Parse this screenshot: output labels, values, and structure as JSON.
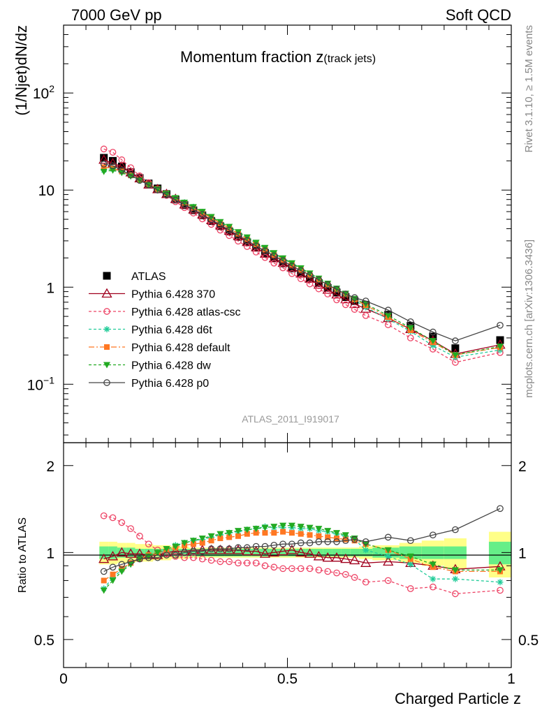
{
  "header": {
    "left": "7000 GeV pp",
    "right": "Soft QCD"
  },
  "side": {
    "rivet": "Rivet 3.1.10, ≥ 1.5M events",
    "mcplots": "mcplots.cern.ch [arXiv:1306.3436]"
  },
  "watermark": "ATLAS_2011_I919017",
  "title": {
    "main": "Momentum fraction z",
    "sub": "(track jets)"
  },
  "chart_data": [
    {
      "type": "line",
      "panel": "main",
      "ylabel": "(1/Njet)dN/dz",
      "yscale": "log",
      "ylim": [
        0.025,
        500
      ],
      "xlim": [
        0,
        1
      ],
      "legend_placement": "lower-left",
      "y_ticks": [
        {
          "value": 0.1,
          "base": "10",
          "exp": "−1"
        },
        {
          "value": 1,
          "base": "1",
          "exp": ""
        },
        {
          "value": 10,
          "base": "10",
          "exp": ""
        },
        {
          "value": 100,
          "base": "10",
          "exp": "2"
        }
      ],
      "x": [
        0.09,
        0.11,
        0.13,
        0.15,
        0.17,
        0.19,
        0.21,
        0.23,
        0.25,
        0.27,
        0.29,
        0.31,
        0.33,
        0.35,
        0.37,
        0.39,
        0.41,
        0.43,
        0.45,
        0.47,
        0.49,
        0.51,
        0.53,
        0.55,
        0.57,
        0.59,
        0.61,
        0.63,
        0.65,
        0.675,
        0.725,
        0.775,
        0.825,
        0.875,
        0.975
      ],
      "series": [
        {
          "name": "ATLAS",
          "color": "#000000",
          "marker": "square-filled",
          "dash": "none",
          "values": [
            21.5,
            20.0,
            17.5,
            15.3,
            13.3,
            11.7,
            10.4,
            9.1,
            8.0,
            7.0,
            6.2,
            5.5,
            4.8,
            4.25,
            3.75,
            3.3,
            2.9,
            2.55,
            2.25,
            1.98,
            1.76,
            1.56,
            1.38,
            1.23,
            1.1,
            0.98,
            0.88,
            0.79,
            0.72,
            0.66,
            0.52,
            0.4,
            0.31,
            0.235,
            0.285
          ]
        },
        {
          "name": "Pythia 6.428 370",
          "color": "#a0001e",
          "marker": "triangle-open",
          "dash": "none",
          "values": [
            20.5,
            18.9,
            17.5,
            15.2,
            13.2,
            11.4,
            10.2,
            9.1,
            8.1,
            7.1,
            6.3,
            5.6,
            4.9,
            4.32,
            3.81,
            3.36,
            2.92,
            2.57,
            2.21,
            1.98,
            1.78,
            1.59,
            1.38,
            1.22,
            1.06,
            0.94,
            0.84,
            0.75,
            0.67,
            0.6,
            0.48,
            0.37,
            0.28,
            0.205,
            0.255
          ]
        },
        {
          "name": "Pythia 6.428 atlas-csc",
          "color": "#ee4466",
          "marker": "circle-open",
          "dash": "4,3",
          "values": [
            26.5,
            24.5,
            20.5,
            17.0,
            14.0,
            11.9,
            10.2,
            8.8,
            7.6,
            6.6,
            5.8,
            5.05,
            4.43,
            3.87,
            3.4,
            2.98,
            2.62,
            2.3,
            2.02,
            1.77,
            1.58,
            1.38,
            1.22,
            1.08,
            0.96,
            0.85,
            0.74,
            0.66,
            0.59,
            0.51,
            0.41,
            0.3,
            0.23,
            0.168,
            0.212
          ]
        },
        {
          "name": "Pythia 6.428 d6t",
          "color": "#22cc99",
          "marker": "star",
          "dash": "4,3",
          "values": [
            16.0,
            16.4,
            15.3,
            14.0,
            12.6,
            11.4,
            10.2,
            9.2,
            8.3,
            7.45,
            6.7,
            5.95,
            5.25,
            4.65,
            4.15,
            3.65,
            3.22,
            2.84,
            2.52,
            2.22,
            1.97,
            1.74,
            1.55,
            1.37,
            1.21,
            1.07,
            0.96,
            0.85,
            0.74,
            0.62,
            0.47,
            0.35,
            0.25,
            0.19,
            0.225
          ]
        },
        {
          "name": "Pythia 6.428 default",
          "color": "#ff7722",
          "marker": "square-filled-small",
          "dash": "8,3,2,3",
          "values": [
            17.2,
            16.8,
            15.6,
            14.2,
            12.8,
            11.5,
            10.3,
            9.25,
            8.3,
            7.4,
            6.6,
            5.85,
            5.15,
            4.55,
            4.05,
            3.55,
            3.13,
            2.76,
            2.44,
            2.15,
            1.92,
            1.7,
            1.51,
            1.33,
            1.19,
            1.05,
            0.94,
            0.84,
            0.75,
            0.65,
            0.49,
            0.36,
            0.27,
            0.2,
            0.24
          ]
        },
        {
          "name": "Pythia 6.428 dw",
          "color": "#22aa22",
          "marker": "triangle-down-filled",
          "dash": "4,3",
          "values": [
            15.5,
            16.0,
            15.1,
            13.9,
            12.6,
            11.3,
            10.2,
            9.2,
            8.3,
            7.45,
            6.7,
            6.0,
            5.3,
            4.7,
            4.2,
            3.7,
            3.27,
            2.88,
            2.55,
            2.25,
            1.99,
            1.77,
            1.57,
            1.39,
            1.23,
            1.09,
            0.97,
            0.86,
            0.76,
            0.67,
            0.51,
            0.38,
            0.28,
            0.2,
            0.245
          ]
        },
        {
          "name": "Pythia 6.428 p0",
          "color": "#444444",
          "marker": "circle-open",
          "dash": "none",
          "values": [
            18.5,
            17.8,
            16.0,
            14.3,
            12.6,
            11.3,
            10.0,
            8.9,
            7.9,
            7.1,
            6.3,
            5.6,
            4.95,
            4.38,
            3.87,
            3.42,
            3.02,
            2.66,
            2.36,
            2.1,
            1.87,
            1.65,
            1.48,
            1.33,
            1.19,
            1.06,
            0.95,
            0.85,
            0.78,
            0.72,
            0.58,
            0.44,
            0.345,
            0.28,
            0.405
          ]
        }
      ]
    },
    {
      "type": "line",
      "panel": "ratio",
      "ylabel": "Ratio to ATLAS",
      "xlabel": "Charged Particle z",
      "yscale": "log",
      "ylim": [
        0.4,
        2.4
      ],
      "xlim": [
        0,
        1
      ],
      "x_ticks": [
        {
          "value": 0,
          "label": "0"
        },
        {
          "value": 0.5,
          "label": "0.5"
        },
        {
          "value": 1,
          "label": "1"
        }
      ],
      "y_ticks": [
        {
          "value": 0.5,
          "label": "0.5"
        },
        {
          "value": 1,
          "label": "1"
        },
        {
          "value": 2,
          "label": "2"
        }
      ],
      "bands": {
        "x_edges": [
          0.08,
          0.1,
          0.12,
          0.14,
          0.16,
          0.18,
          0.2,
          0.22,
          0.24,
          0.26,
          0.28,
          0.3,
          0.32,
          0.34,
          0.36,
          0.38,
          0.4,
          0.42,
          0.44,
          0.46,
          0.48,
          0.5,
          0.52,
          0.54,
          0.56,
          0.58,
          0.6,
          0.62,
          0.64,
          0.66,
          0.69,
          0.75,
          0.8,
          0.85,
          0.9,
          0.95,
          1.0
        ],
        "stat_color": "#66ee88",
        "syst_color": "#ffff88",
        "stat_half_width": [
          0.05,
          0.05,
          0.04,
          0.04,
          0.03,
          0.03,
          0.03,
          0.03,
          0.03,
          0.03,
          0.03,
          0.03,
          0.03,
          0.03,
          0.03,
          0.03,
          0.03,
          0.03,
          0.03,
          0.03,
          0.03,
          0.03,
          0.03,
          0.03,
          0.03,
          0.03,
          0.03,
          0.03,
          0.03,
          0.03,
          0.04,
          0.05,
          0.05,
          0.05,
          0.0,
          0.09
        ],
        "syst_half_width": [
          0.09,
          0.09,
          0.08,
          0.08,
          0.07,
          0.07,
          0.06,
          0.06,
          0.05,
          0.05,
          0.04,
          0.04,
          0.04,
          0.04,
          0.04,
          0.04,
          0.04,
          0.04,
          0.04,
          0.04,
          0.04,
          0.04,
          0.04,
          0.04,
          0.04,
          0.04,
          0.04,
          0.04,
          0.04,
          0.05,
          0.06,
          0.08,
          0.1,
          0.12,
          0.0,
          0.18
        ]
      },
      "x": [
        0.09,
        0.11,
        0.13,
        0.15,
        0.17,
        0.19,
        0.21,
        0.23,
        0.25,
        0.27,
        0.29,
        0.31,
        0.33,
        0.35,
        0.37,
        0.39,
        0.41,
        0.43,
        0.45,
        0.47,
        0.49,
        0.51,
        0.53,
        0.55,
        0.57,
        0.59,
        0.61,
        0.63,
        0.65,
        0.675,
        0.725,
        0.775,
        0.825,
        0.875,
        0.975
      ],
      "series": [
        {
          "name": "Pythia 6.428 370",
          "color": "#a0001e",
          "marker": "triangle-open",
          "dash": "none",
          "values": [
            0.95,
            0.97,
            1.0,
            0.99,
            0.99,
            0.98,
            0.98,
            1.0,
            1.01,
            1.01,
            1.02,
            1.02,
            1.02,
            1.02,
            1.02,
            1.02,
            1.01,
            1.01,
            0.99,
            1.0,
            1.01,
            1.02,
            1.0,
            0.99,
            0.97,
            0.96,
            0.96,
            0.95,
            0.94,
            0.92,
            0.93,
            0.92,
            0.9,
            0.875,
            0.895
          ]
        },
        {
          "name": "Pythia 6.428 atlas-csc",
          "color": "#ee4466",
          "marker": "circle-open",
          "dash": "4,3",
          "values": [
            1.34,
            1.32,
            1.27,
            1.21,
            1.14,
            1.07,
            1.02,
            0.99,
            0.97,
            0.96,
            0.96,
            0.95,
            0.94,
            0.93,
            0.93,
            0.92,
            0.92,
            0.92,
            0.9,
            0.89,
            0.88,
            0.88,
            0.88,
            0.88,
            0.87,
            0.86,
            0.85,
            0.84,
            0.82,
            0.79,
            0.8,
            0.75,
            0.76,
            0.72,
            0.74
          ]
        },
        {
          "name": "Pythia 6.428 d6t",
          "color": "#22cc99",
          "marker": "star",
          "dash": "4,3",
          "values": [
            0.75,
            0.82,
            0.87,
            0.92,
            0.95,
            0.98,
            1.0,
            1.02,
            1.06,
            1.08,
            1.1,
            1.11,
            1.13,
            1.15,
            1.17,
            1.18,
            1.2,
            1.21,
            1.23,
            1.22,
            1.22,
            1.22,
            1.21,
            1.21,
            1.19,
            1.18,
            1.16,
            1.14,
            1.11,
            1.02,
            0.97,
            0.91,
            0.81,
            0.81,
            0.79
          ]
        },
        {
          "name": "Pythia 6.428 default",
          "color": "#ff7722",
          "marker": "square-filled-small",
          "dash": "8,3,2,3",
          "values": [
            0.8,
            0.84,
            0.88,
            0.92,
            0.95,
            0.98,
            1.0,
            1.02,
            1.04,
            1.06,
            1.07,
            1.08,
            1.1,
            1.12,
            1.13,
            1.14,
            1.16,
            1.17,
            1.17,
            1.17,
            1.18,
            1.17,
            1.16,
            1.15,
            1.14,
            1.13,
            1.12,
            1.11,
            1.1,
            1.07,
            1.02,
            0.95,
            0.89,
            0.86,
            0.86
          ]
        },
        {
          "name": "Pythia 6.428 dw",
          "color": "#22aa22",
          "marker": "triangle-down-filled",
          "dash": "4,3",
          "values": [
            0.74,
            0.8,
            0.86,
            0.91,
            0.95,
            0.97,
            1.0,
            1.03,
            1.05,
            1.08,
            1.1,
            1.12,
            1.14,
            1.16,
            1.17,
            1.19,
            1.2,
            1.21,
            1.22,
            1.23,
            1.24,
            1.24,
            1.23,
            1.22,
            1.21,
            1.19,
            1.17,
            1.15,
            1.12,
            1.07,
            1.02,
            0.97,
            0.91,
            0.87,
            0.87
          ]
        },
        {
          "name": "Pythia 6.428 p0",
          "color": "#444444",
          "marker": "circle-open",
          "dash": "none",
          "values": [
            0.86,
            0.89,
            0.91,
            0.93,
            0.95,
            0.96,
            0.96,
            0.98,
            0.98,
            1.0,
            1.01,
            1.01,
            1.03,
            1.03,
            1.03,
            1.04,
            1.04,
            1.05,
            1.05,
            1.06,
            1.07,
            1.07,
            1.08,
            1.08,
            1.09,
            1.09,
            1.09,
            1.1,
            1.11,
            1.09,
            1.13,
            1.1,
            1.15,
            1.2,
            1.42
          ]
        }
      ]
    }
  ]
}
